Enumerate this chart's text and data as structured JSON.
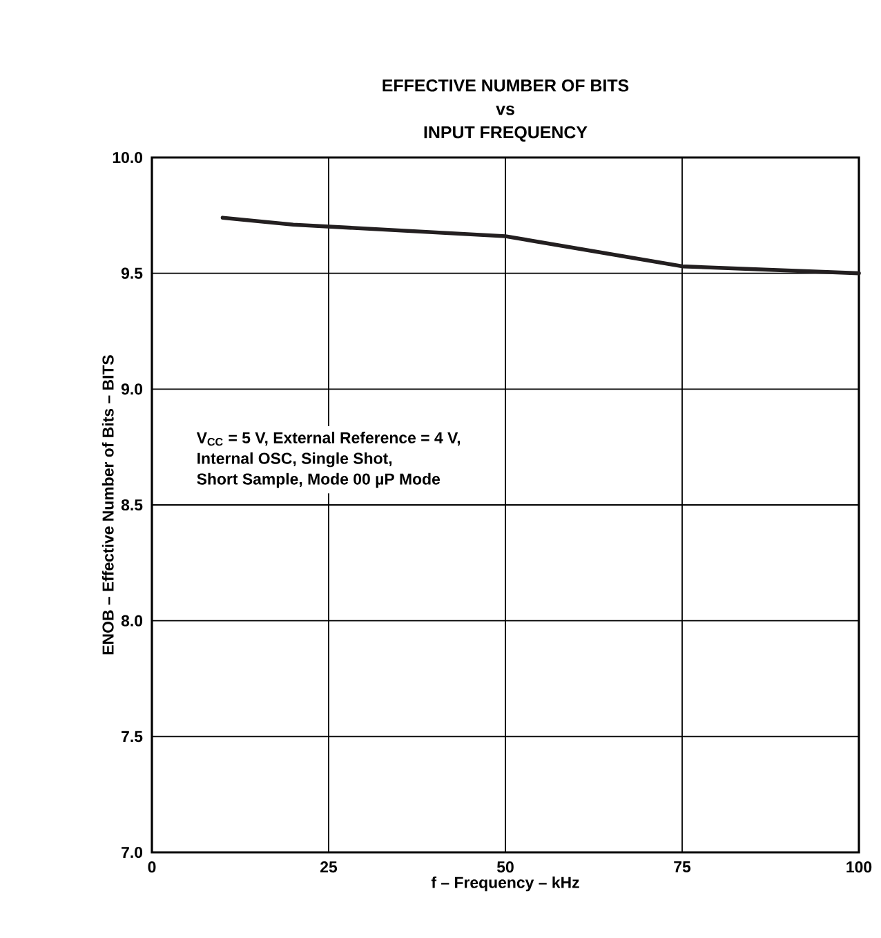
{
  "chart_data": {
    "type": "line",
    "title": "EFFECTIVE NUMBER OF BITS\nvs\nINPUT FREQUENCY",
    "xlabel": "f – Frequency – kHz",
    "ylabel": "ENOB – Effective Number of Bits – BITS",
    "x": [
      10,
      20,
      50,
      75,
      100
    ],
    "series": [
      {
        "color": "#231f20",
        "values": [
          9.74,
          9.71,
          9.66,
          9.53,
          9.5
        ]
      }
    ],
    "xlim": [
      0,
      100
    ],
    "xticks": [
      0,
      25,
      50,
      75,
      100
    ],
    "ylim": [
      7.0,
      10.0
    ],
    "yticks": [
      {
        "value": 7.0,
        "label": "7.0"
      },
      {
        "value": 7.5,
        "label": "7.5"
      },
      {
        "value": 8.0,
        "label": "8.0"
      },
      {
        "value": 8.5,
        "label": "8.5"
      },
      {
        "value": 9.0,
        "label": "9.0"
      },
      {
        "value": 9.5,
        "label": "9.5"
      },
      {
        "value": 10.0,
        "label": "10.0"
      }
    ],
    "grid": true,
    "annotations": [
      "V$_{CC}$ = 5 V, External Reference = 4 V,",
      "Internal OSC, Single Shot,",
      "Short Sample, Mode 00 µP Mode"
    ]
  }
}
